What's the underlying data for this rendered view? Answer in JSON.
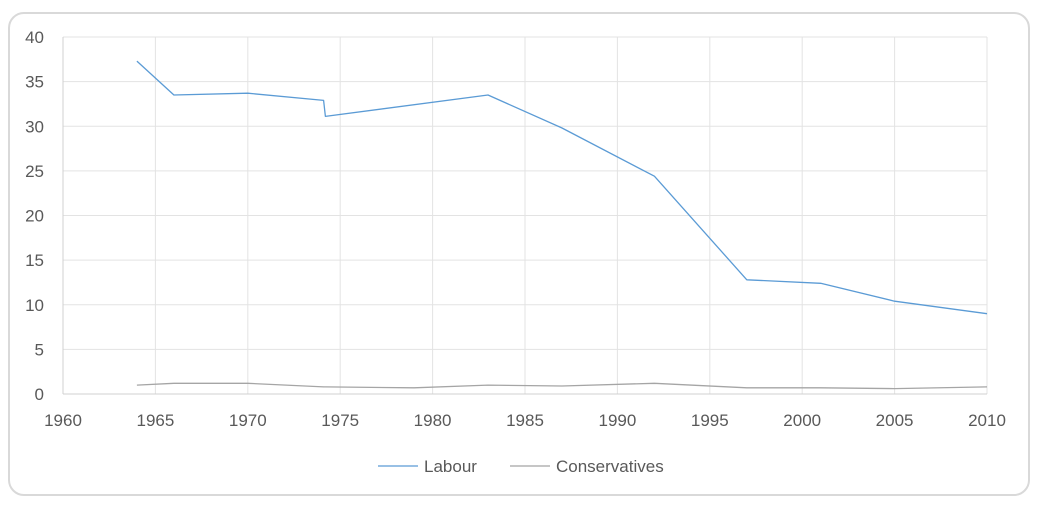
{
  "chart_data": {
    "type": "line",
    "title": "",
    "xlabel": "",
    "ylabel": "",
    "xlim": [
      1960,
      2010
    ],
    "ylim": [
      0,
      40
    ],
    "x_ticks": [
      1960,
      1965,
      1970,
      1975,
      1980,
      1985,
      1990,
      1995,
      2000,
      2005,
      2010
    ],
    "y_ticks": [
      0,
      5,
      10,
      15,
      20,
      25,
      30,
      35,
      40
    ],
    "grid": true,
    "legend_position": "bottom",
    "series": [
      {
        "name": "Labour",
        "color": "#5b9bd5",
        "x": [
          1964,
          1966,
          1970,
          1974.1,
          1974.2,
          1983,
          1987,
          1992,
          1997,
          2001,
          2005,
          2010
        ],
        "y": [
          37.3,
          33.5,
          33.7,
          32.9,
          31.1,
          33.5,
          29.8,
          24.4,
          12.8,
          12.4,
          10.4,
          9.0
        ]
      },
      {
        "name": "Conservatives",
        "color": "#a5a5a5",
        "x": [
          1964,
          1966,
          1970,
          1974.1,
          1974.2,
          1979,
          1983,
          1987,
          1992,
          1997,
          2001,
          2005,
          2010
        ],
        "y": [
          1.0,
          1.2,
          1.2,
          0.8,
          0.8,
          0.7,
          1.0,
          0.9,
          1.2,
          0.7,
          0.7,
          0.6,
          0.8
        ]
      }
    ]
  }
}
